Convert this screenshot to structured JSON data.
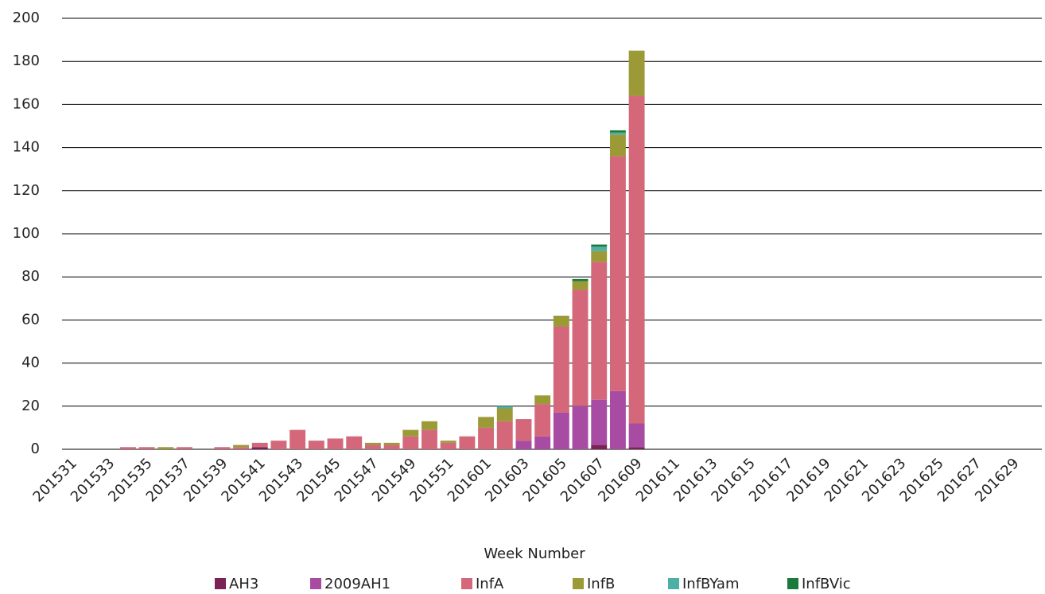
{
  "chart_data": {
    "type": "bar",
    "stacked": true,
    "x_label": "Week Number",
    "categories": [
      "201531",
      null,
      "201533",
      null,
      "201535",
      null,
      "201537",
      null,
      "201539",
      null,
      "201541",
      null,
      "201543",
      null,
      "201545",
      null,
      "201547",
      null,
      "201549",
      null,
      "201551",
      null,
      "201601",
      null,
      "201603",
      null,
      "201605",
      null,
      "201607",
      null,
      "201609",
      null,
      "201611",
      null,
      "201613",
      null,
      "201615",
      null,
      "201617",
      null,
      "201619",
      null,
      "201621",
      null,
      "201623",
      null,
      "201625",
      null,
      "201627",
      null,
      "201629",
      null
    ],
    "series": [
      {
        "name": "AH3",
        "color": "#7b2257",
        "values": [
          0,
          0,
          0,
          0,
          0,
          0,
          0,
          0,
          0,
          0,
          1,
          0,
          0,
          0,
          0,
          0,
          0,
          0,
          0,
          0,
          0,
          0,
          0,
          0,
          0,
          0,
          0,
          0,
          2,
          0,
          1,
          0,
          0,
          0,
          0,
          0,
          0,
          0,
          0,
          0,
          0,
          0,
          0,
          0,
          0,
          0,
          0,
          0,
          0,
          0,
          0,
          0
        ]
      },
      {
        "name": "2009AH1",
        "color": "#a84ca3",
        "values": [
          0,
          0,
          0,
          0,
          0,
          0,
          0,
          0,
          0,
          0,
          0,
          0,
          0,
          0,
          0,
          0,
          0,
          0,
          0,
          0,
          0,
          0,
          0,
          0,
          4,
          6,
          17,
          20,
          21,
          27,
          11,
          0,
          0,
          0,
          0,
          0,
          0,
          0,
          0,
          0,
          0,
          0,
          0,
          0,
          0,
          0,
          0,
          0,
          0,
          0,
          0,
          0
        ]
      },
      {
        "name": "InfA",
        "color": "#d4687a",
        "values": [
          0,
          0,
          0,
          1,
          1,
          0,
          1,
          0,
          1,
          1,
          2,
          4,
          9,
          4,
          5,
          6,
          2,
          2,
          6,
          9,
          3,
          6,
          10,
          13,
          10,
          15,
          40,
          54,
          64,
          109,
          152,
          0,
          0,
          0,
          0,
          0,
          0,
          0,
          0,
          0,
          0,
          0,
          0,
          0,
          0,
          0,
          0,
          0,
          0,
          0,
          0,
          0
        ]
      },
      {
        "name": "InfB",
        "color": "#9b9a36",
        "values": [
          0,
          0,
          0,
          0,
          0,
          1,
          0,
          0,
          0,
          1,
          0,
          0,
          0,
          0,
          0,
          0,
          1,
          1,
          3,
          4,
          1,
          0,
          5,
          6,
          0,
          4,
          5,
          4,
          5,
          10,
          21,
          0,
          0,
          0,
          0,
          0,
          0,
          0,
          0,
          0,
          0,
          0,
          0,
          0,
          0,
          0,
          0,
          0,
          0,
          0,
          0,
          0
        ]
      },
      {
        "name": "InfBYam",
        "color": "#4cb0a4",
        "values": [
          0,
          0,
          0,
          0,
          0,
          0,
          0,
          0,
          0,
          0,
          0,
          0,
          0,
          0,
          0,
          0,
          0,
          0,
          0,
          0,
          0,
          0,
          0,
          1,
          0,
          0,
          0,
          0,
          2,
          1,
          0,
          0,
          0,
          0,
          0,
          0,
          0,
          0,
          0,
          0,
          0,
          0,
          0,
          0,
          0,
          0,
          0,
          0,
          0,
          0,
          0,
          0
        ]
      },
      {
        "name": "InfBVic",
        "color": "#1a7a3a",
        "values": [
          0,
          0,
          0,
          0,
          0,
          0,
          0,
          0,
          0,
          0,
          0,
          0,
          0,
          0,
          0,
          0,
          0,
          0,
          0,
          0,
          0,
          0,
          0,
          0,
          0,
          0,
          0,
          1,
          1,
          1,
          0,
          0,
          0,
          0,
          0,
          0,
          0,
          0,
          0,
          0,
          0,
          0,
          0,
          0,
          0,
          0,
          0,
          0,
          0,
          0,
          0,
          0
        ]
      }
    ],
    "ylim": [
      0,
      200
    ],
    "yticks": [
      0,
      20,
      40,
      60,
      80,
      100,
      120,
      140,
      160,
      180,
      200
    ],
    "grid": true
  }
}
